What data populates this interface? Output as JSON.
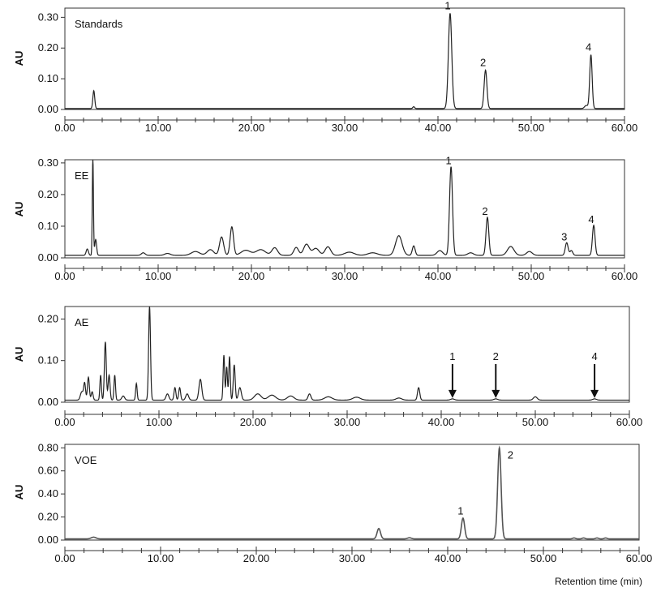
{
  "chart_data": [
    {
      "type": "line",
      "label": "Standards",
      "ylabel": "AU",
      "xlim": [
        0,
        60
      ],
      "ylim": [
        0,
        0.33
      ],
      "yticks": [
        0.0,
        0.1,
        0.2,
        0.3
      ],
      "ytick_labels": [
        "0.00",
        "0.10",
        "0.20",
        "0.30"
      ],
      "xtick_labels": [
        "0.00",
        "10.00",
        "20.00",
        "30.00",
        "40.00",
        "50.00",
        "60.00"
      ],
      "baseline": 0.003,
      "peaks": [
        {
          "x": 3.1,
          "y": 0.058,
          "w": 0.1
        },
        {
          "x": 37.4,
          "y": 0.006,
          "w": 0.1
        },
        {
          "x": 41.3,
          "y": 0.31,
          "w": 0.18
        },
        {
          "x": 45.1,
          "y": 0.125,
          "w": 0.15
        },
        {
          "x": 55.9,
          "y": 0.01,
          "w": 0.18
        },
        {
          "x": 56.4,
          "y": 0.175,
          "w": 0.13
        }
      ],
      "annotations": [
        {
          "text": "1",
          "x": 41.3,
          "y": 0.31
        },
        {
          "text": "2",
          "x": 45.1,
          "y": 0.125
        },
        {
          "text": "4",
          "x": 56.4,
          "y": 0.175
        }
      ]
    },
    {
      "type": "line",
      "label": "EE",
      "ylabel": "AU",
      "xlim": [
        0,
        60
      ],
      "ylim": [
        0,
        0.31
      ],
      "yticks": [
        0.0,
        0.1,
        0.2,
        0.3
      ],
      "ytick_labels": [
        "0.00",
        "0.10",
        "0.20",
        "0.30"
      ],
      "xtick_labels": [
        "0.00",
        "10.00",
        "20.00",
        "30.00",
        "40.00",
        "50.00",
        "60.00"
      ],
      "baseline": 0.008,
      "peaks": [
        {
          "x": 2.4,
          "y": 0.02,
          "w": 0.12
        },
        {
          "x": 3.0,
          "y": 0.31,
          "w": 0.06
        },
        {
          "x": 3.3,
          "y": 0.05,
          "w": 0.1
        },
        {
          "x": 8.4,
          "y": 0.008,
          "w": 0.2
        },
        {
          "x": 11.0,
          "y": 0.006,
          "w": 0.3
        },
        {
          "x": 14.0,
          "y": 0.012,
          "w": 0.45
        },
        {
          "x": 15.6,
          "y": 0.018,
          "w": 0.35
        },
        {
          "x": 16.8,
          "y": 0.058,
          "w": 0.22
        },
        {
          "x": 17.9,
          "y": 0.09,
          "w": 0.18
        },
        {
          "x": 19.4,
          "y": 0.016,
          "w": 0.5
        },
        {
          "x": 21.0,
          "y": 0.018,
          "w": 0.5
        },
        {
          "x": 22.5,
          "y": 0.024,
          "w": 0.3
        },
        {
          "x": 24.8,
          "y": 0.025,
          "w": 0.25
        },
        {
          "x": 25.9,
          "y": 0.035,
          "w": 0.3
        },
        {
          "x": 26.9,
          "y": 0.022,
          "w": 0.35
        },
        {
          "x": 28.2,
          "y": 0.027,
          "w": 0.3
        },
        {
          "x": 30.5,
          "y": 0.01,
          "w": 0.5
        },
        {
          "x": 33.0,
          "y": 0.008,
          "w": 0.5
        },
        {
          "x": 35.8,
          "y": 0.062,
          "w": 0.35
        },
        {
          "x": 37.4,
          "y": 0.03,
          "w": 0.15
        },
        {
          "x": 40.2,
          "y": 0.015,
          "w": 0.3
        },
        {
          "x": 41.4,
          "y": 0.28,
          "w": 0.16
        },
        {
          "x": 43.5,
          "y": 0.008,
          "w": 0.3
        },
        {
          "x": 45.3,
          "y": 0.12,
          "w": 0.15
        },
        {
          "x": 47.8,
          "y": 0.028,
          "w": 0.35
        },
        {
          "x": 49.8,
          "y": 0.012,
          "w": 0.3
        },
        {
          "x": 53.8,
          "y": 0.04,
          "w": 0.15
        },
        {
          "x": 54.3,
          "y": 0.015,
          "w": 0.15
        },
        {
          "x": 56.7,
          "y": 0.095,
          "w": 0.14
        }
      ],
      "annotations": [
        {
          "text": "1",
          "x": 41.4,
          "y": 0.28
        },
        {
          "text": "2",
          "x": 45.3,
          "y": 0.12
        },
        {
          "text": "3",
          "x": 53.8,
          "y": 0.04
        },
        {
          "text": "4",
          "x": 56.7,
          "y": 0.095
        }
      ]
    },
    {
      "type": "line",
      "label": "AE",
      "ylabel": "AU",
      "xlim": [
        0,
        60
      ],
      "ylim": [
        0,
        0.23
      ],
      "yticks": [
        0.0,
        0.1,
        0.2
      ],
      "ytick_labels": [
        "0.00",
        "0.10",
        "0.20"
      ],
      "xtick_labels": [
        "0.00",
        "10.00",
        "20.00",
        "30.00",
        "40.00",
        "50.00",
        "60.00"
      ],
      "baseline": 0.005,
      "peaks": [
        {
          "x": 1.8,
          "y": 0.02,
          "w": 0.15
        },
        {
          "x": 2.1,
          "y": 0.04,
          "w": 0.1
        },
        {
          "x": 2.5,
          "y": 0.055,
          "w": 0.1
        },
        {
          "x": 2.9,
          "y": 0.02,
          "w": 0.1
        },
        {
          "x": 3.8,
          "y": 0.06,
          "w": 0.08
        },
        {
          "x": 4.3,
          "y": 0.14,
          "w": 0.1
        },
        {
          "x": 4.7,
          "y": 0.06,
          "w": 0.1
        },
        {
          "x": 5.3,
          "y": 0.06,
          "w": 0.08
        },
        {
          "x": 6.2,
          "y": 0.01,
          "w": 0.15
        },
        {
          "x": 7.6,
          "y": 0.04,
          "w": 0.08
        },
        {
          "x": 9.0,
          "y": 0.225,
          "w": 0.1
        },
        {
          "x": 10.9,
          "y": 0.015,
          "w": 0.15
        },
        {
          "x": 11.7,
          "y": 0.03,
          "w": 0.1
        },
        {
          "x": 12.2,
          "y": 0.03,
          "w": 0.1
        },
        {
          "x": 13.0,
          "y": 0.015,
          "w": 0.15
        },
        {
          "x": 14.4,
          "y": 0.05,
          "w": 0.15
        },
        {
          "x": 16.9,
          "y": 0.108,
          "w": 0.08
        },
        {
          "x": 17.2,
          "y": 0.08,
          "w": 0.08
        },
        {
          "x": 17.5,
          "y": 0.105,
          "w": 0.08
        },
        {
          "x": 18.0,
          "y": 0.085,
          "w": 0.1
        },
        {
          "x": 18.6,
          "y": 0.03,
          "w": 0.15
        },
        {
          "x": 20.5,
          "y": 0.015,
          "w": 0.35
        },
        {
          "x": 22.0,
          "y": 0.012,
          "w": 0.4
        },
        {
          "x": 24.0,
          "y": 0.01,
          "w": 0.35
        },
        {
          "x": 26.0,
          "y": 0.015,
          "w": 0.15
        },
        {
          "x": 28.0,
          "y": 0.008,
          "w": 0.4
        },
        {
          "x": 31.0,
          "y": 0.007,
          "w": 0.4
        },
        {
          "x": 35.5,
          "y": 0.005,
          "w": 0.3
        },
        {
          "x": 37.6,
          "y": 0.03,
          "w": 0.12
        },
        {
          "x": 41.2,
          "y": 0.003,
          "w": 0.2
        },
        {
          "x": 45.8,
          "y": 0.003,
          "w": 0.2
        },
        {
          "x": 50.0,
          "y": 0.008,
          "w": 0.2
        },
        {
          "x": 56.3,
          "y": 0.003,
          "w": 0.2
        }
      ],
      "annotations": [
        {
          "text": "1",
          "x": 41.2,
          "y": 0.006,
          "arrow": true
        },
        {
          "text": "2",
          "x": 45.8,
          "y": 0.006,
          "arrow": true
        },
        {
          "text": "4",
          "x": 56.3,
          "y": 0.006,
          "arrow": true
        }
      ]
    },
    {
      "type": "line",
      "label": "VOE",
      "ylabel": "AU",
      "xlim": [
        0,
        60
      ],
      "ylim": [
        0,
        0.83
      ],
      "yticks": [
        0.0,
        0.2,
        0.4,
        0.6,
        0.8
      ],
      "ytick_labels": [
        "0.00",
        "0.20",
        "0.40",
        "0.60",
        "0.80"
      ],
      "xtick_labels": [
        "0.00",
        "10.00",
        "20.00",
        "30.00",
        "40.00",
        "50.00",
        "60.00"
      ],
      "xlabel": "Retention time (min)",
      "baseline": 0.01,
      "peaks": [
        {
          "x": 3.0,
          "y": 0.015,
          "w": 0.25
        },
        {
          "x": 32.8,
          "y": 0.09,
          "w": 0.18
        },
        {
          "x": 36.0,
          "y": 0.01,
          "w": 0.2
        },
        {
          "x": 41.6,
          "y": 0.18,
          "w": 0.17
        },
        {
          "x": 45.4,
          "y": 0.79,
          "w": 0.18
        },
        {
          "x": 53.2,
          "y": 0.008,
          "w": 0.15
        },
        {
          "x": 54.2,
          "y": 0.008,
          "w": 0.15
        },
        {
          "x": 55.6,
          "y": 0.008,
          "w": 0.15
        },
        {
          "x": 56.5,
          "y": 0.008,
          "w": 0.15
        }
      ],
      "annotations": [
        {
          "text": "1",
          "x": 41.6,
          "y": 0.18
        },
        {
          "text": "2",
          "x": 45.4,
          "y": 0.79,
          "side": "right"
        }
      ]
    }
  ]
}
